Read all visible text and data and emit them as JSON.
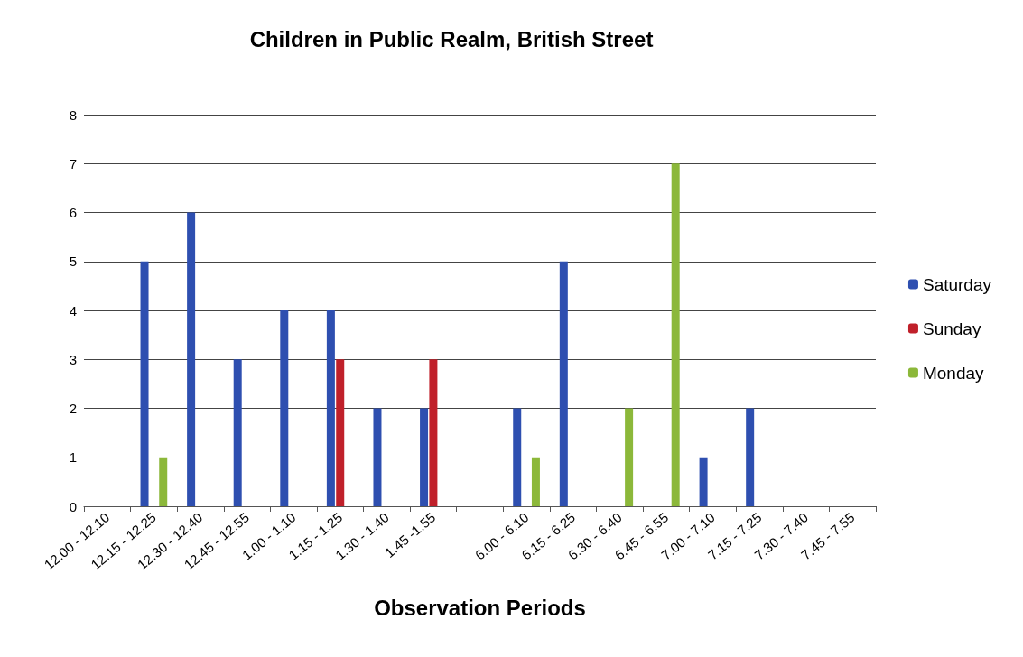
{
  "chart_data": {
    "type": "bar",
    "title": "Children in Public Realm, British Street",
    "xlabel": "Observation Periods",
    "categories": [
      "12.00 - 12.10",
      "12.15 - 12.25",
      "12.30 - 12.40",
      "12.45 - 12.55",
      "1.00 - 1.10",
      "1.15 - 1.25",
      "1.30 - 1.40",
      "1.45 -1.55",
      null,
      "6.00 - 6.10",
      "6.15 - 6.25",
      "6.30 - 6.40",
      "6.45 - 6.55",
      "7.00 - 7.10",
      "7.15 - 7.25",
      "7.30 - 7.40",
      "7.45 - 7.55"
    ],
    "series": [
      {
        "name": "Saturday",
        "color": "#2e4fb0",
        "values": [
          null,
          5,
          6,
          3,
          4,
          4,
          2,
          2,
          null,
          2,
          5,
          null,
          null,
          1,
          2,
          null,
          null
        ]
      },
      {
        "name": "Sunday",
        "color": "#c0202a",
        "values": [
          null,
          null,
          null,
          null,
          null,
          3,
          null,
          3,
          null,
          null,
          null,
          null,
          null,
          null,
          null,
          null,
          null
        ]
      },
      {
        "name": "Monday",
        "color": "#8cb83a",
        "values": [
          null,
          1,
          null,
          null,
          null,
          null,
          null,
          null,
          null,
          1,
          null,
          2,
          7,
          null,
          null,
          null,
          null
        ]
      }
    ],
    "ylim": [
      0,
      8
    ],
    "yticks": [
      0,
      1,
      2,
      3,
      4,
      5,
      6,
      7,
      8
    ],
    "grid": "y",
    "legend": "right"
  }
}
